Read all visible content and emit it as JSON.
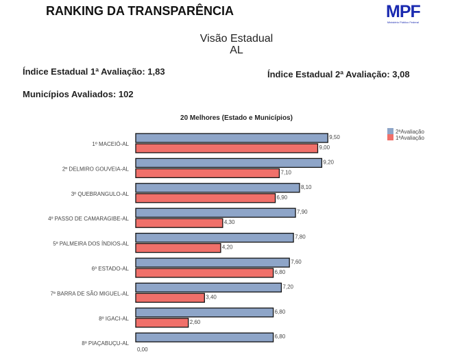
{
  "header": {
    "title": "RANKING DA TRANSPARÊNCIA",
    "logo": "MPF",
    "logo_sub": "Ministério Público Federal",
    "view": "Visão Estadual",
    "state": "AL"
  },
  "stats": {
    "index1": "Índice Estadual 1ª Avaliação: 1,83",
    "index2": "Índice Estadual 2ª Avaliação: 3,08",
    "municipios": "Municípios Avaliados: 102"
  },
  "chart_data": {
    "type": "bar",
    "orientation": "horizontal",
    "title": "20 Melhores (Estado e Municípios)",
    "categories": [
      "1º MACEIÓ-AL",
      "2º DELMIRO GOUVEIA-AL",
      "3º QUEBRANGULO-AL",
      "4º PASSO DE CAMARAGIBE-AL",
      "5º PALMEIRA DOS ÍNDIOS-AL",
      "6º ESTADO-AL",
      "7º BARRA DE SÃO MIGUEL-AL",
      "8º IGACI-AL",
      "8º PIAÇABUÇU-AL"
    ],
    "series": [
      {
        "name": "2ªAvaliação",
        "color": "#8ea5c8",
        "values": [
          9.5,
          9.2,
          8.1,
          7.9,
          7.8,
          7.6,
          7.2,
          6.8,
          6.8
        ],
        "labels": [
          "9,50",
          "9,20",
          "8,10",
          "7,90",
          "7,80",
          "7,60",
          "7,20",
          "6,80",
          "6,80"
        ]
      },
      {
        "name": "1ªAvaliação",
        "color": "#f0706a",
        "values": [
          9.0,
          7.1,
          6.9,
          4.3,
          4.2,
          6.8,
          3.4,
          2.6,
          0.0
        ],
        "labels": [
          "9,00",
          "7,10",
          "6,90",
          "4,30",
          "4,20",
          "6,80",
          "3,40",
          "2,60",
          "0,00"
        ]
      }
    ],
    "legend": "top-right",
    "grid": false
  }
}
